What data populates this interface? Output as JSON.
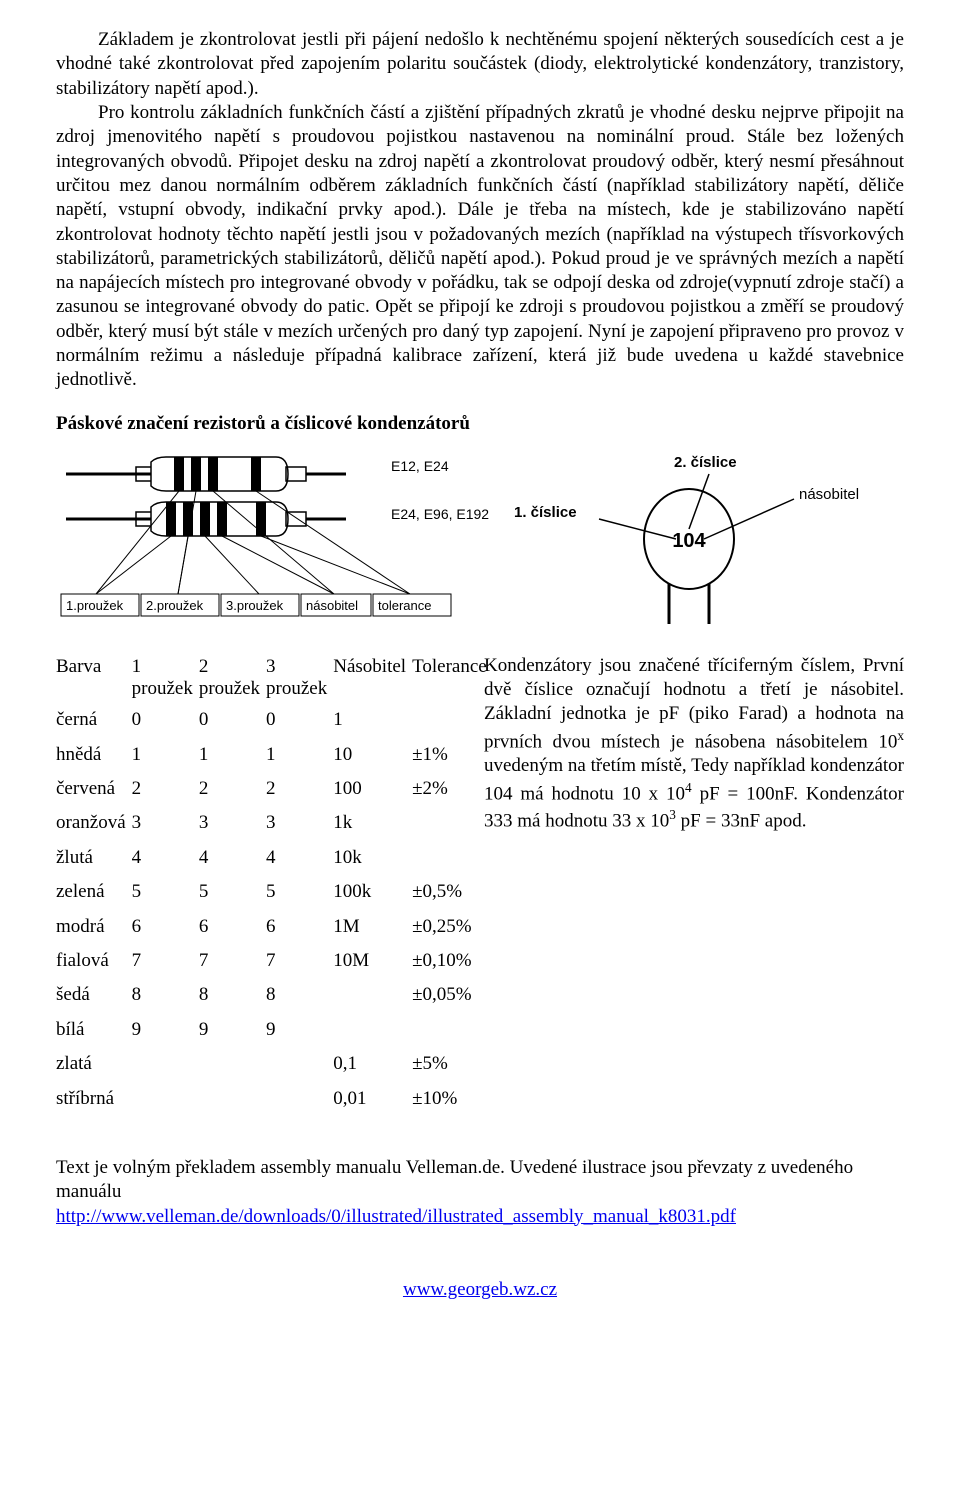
{
  "paragraph": "Základem je zkontrolovat jestli při pájení nedošlo k nechtěnému spojení některých sousedících cest a je vhodné také zkontrolovat před zapojením polaritu součástek (diody, elektrolytické kondenzátory, tranzistory, stabilizátory napětí apod.).",
  "paragraph_rest": "Pro kontrolu základních funkčních částí a zjištění případných zkratů je vhodné desku nejprve připojit na zdroj jmenovitého napětí s proudovou pojistkou nastavenou na nominální proud. Stále bez ložených integrovaných obvodů. Připojet desku na zdroj napětí a zkontrolovat proudový odběr, který nesmí přesáhnout určitou mez danou normálním odběrem základních funkčních částí (například stabilizátory napětí, děliče napětí, vstupní obvody, indikační prvky apod.). Dále je třeba na místech, kde je stabilizováno napětí zkontrolovat hodnoty těchto napětí jestli jsou v požadovaných mezích (například na výstupech třísvorkových stabilizátorů, parametrických stabilizátorů, děličů napětí apod.). Pokud proud je ve správných mezích a napětí na napájecích místech pro integrované obvody v pořádku, tak se odpojí deska od zdroje(vypnutí zdroje stačí) a zasunou se integrované obvody do patic. Opět se připojí ke zdroji s proudovou pojistkou a změří se proudový odběr, který musí být stále v mezích určených pro daný typ zapojení. Nyní je zapojení připraveno pro provoz v normálním režimu a následuje případná kalibrace zařízení, která již bude uvedena u každé stavebnice jednotlivě.",
  "heading": "Páskové značení rezistorů a číslicové kondenzátorů",
  "diagram_left": {
    "series_top": "E12, E24",
    "series_bottom": "E24, E96, E192",
    "labels": [
      "1.proužek",
      "2.proužek",
      "3.proužek",
      "násobitel",
      "tolerance"
    ]
  },
  "diagram_right": {
    "label_left": "1. číslice",
    "label_top": "2. číslice",
    "label_right": "násobitel",
    "code": "104"
  },
  "table": {
    "headers": [
      "Barva",
      "1 proužek",
      "2 proužek",
      "3 proužek",
      "Násobitel",
      "Tolerance"
    ],
    "rows": [
      [
        "černá",
        "0",
        "0",
        "0",
        "1",
        ""
      ],
      [
        "hnědá",
        "1",
        "1",
        "1",
        "10",
        "±1%"
      ],
      [
        "červená",
        "2",
        "2",
        "2",
        "100",
        "±2%"
      ],
      [
        "oranžová",
        "3",
        "3",
        "3",
        "1k",
        ""
      ],
      [
        "žlutá",
        "4",
        "4",
        "4",
        "10k",
        ""
      ],
      [
        "zelená",
        "5",
        "5",
        "5",
        "100k",
        "±0,5%"
      ],
      [
        "modrá",
        "6",
        "6",
        "6",
        "1M",
        "±0,25%"
      ],
      [
        "fialová",
        "7",
        "7",
        "7",
        "10M",
        "±0,10%"
      ],
      [
        "šedá",
        "8",
        "8",
        "8",
        "",
        "±0,05%"
      ],
      [
        "bílá",
        "9",
        "9",
        "9",
        "",
        ""
      ],
      [
        "zlatá",
        "",
        "",
        "",
        "0,1",
        "±5%"
      ],
      [
        "stříbrná",
        "",
        "",
        "",
        "0,01",
        "±10%"
      ]
    ]
  },
  "side_text_1": "Kondenzátory jsou značené tříciferným číslem, První dvě číslice označují hodnotu a třetí je násobitel. Základní jednotka je pF (piko Farad) a hodnota na prvních dvou místech je násobena násobitelem 10",
  "side_text_2": " uvedeným na třetím místě, Tedy například kondenzátor 104 má hodnotu 10 x 10",
  "side_text_3": " pF = 100nF. Kondenzátor 333 má hodnotu 33 x 10",
  "side_text_4": " pF = 33nF apod.",
  "sup_x": "x",
  "sup_4": "4",
  "sup_3": "3",
  "footer_text": "Text je volným překladem assembly manualu Velleman.de. Uvedené ilustrace jsou převzaty z uvedeného manuálu",
  "footer_link_text": "http://www.velleman.de/downloads/0/illustrated/illustrated_assembly_manual_k8031.pdf",
  "bottom_link_text": "www.georgeb.wz.cz",
  "colors": {
    "text": "#000000",
    "link": "#0000ee",
    "background": "#ffffff",
    "diagram_stroke": "#000000",
    "diagram_fill": "#ffffff"
  }
}
